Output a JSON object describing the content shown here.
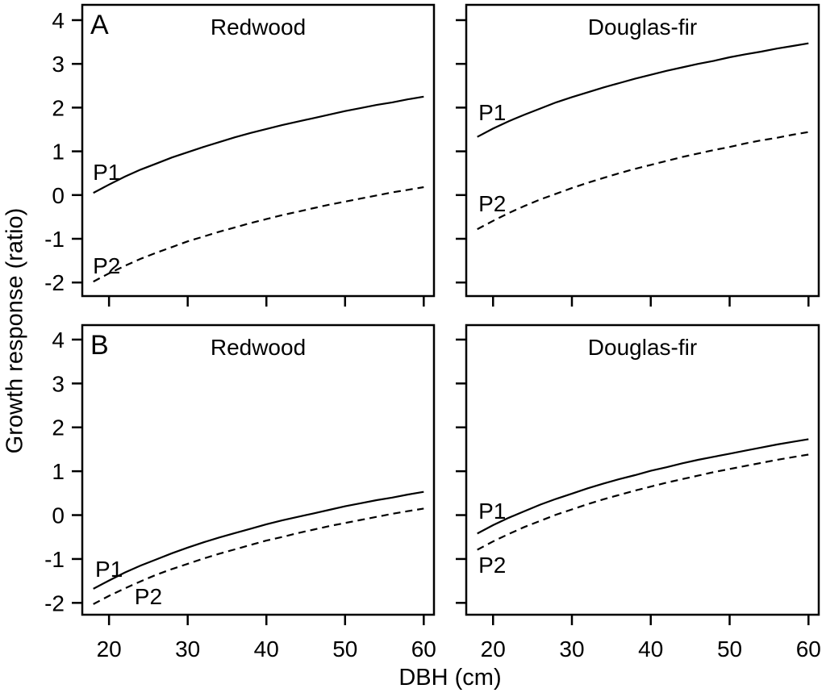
{
  "figure": {
    "xlabel": "DBH (cm)",
    "ylabel": "Growth response (ratio)",
    "background_color": "#ffffff",
    "line_color": "#000000"
  },
  "chart_data": [
    {
      "id": "panel-a-redwood",
      "type": "line",
      "panel_letter": "A",
      "title": "Redwood",
      "row": 0,
      "col": 0,
      "xlim": [
        16.6,
        61.3
      ],
      "ylim": [
        -2.31,
        4.35
      ],
      "xticks": [
        20,
        30,
        40,
        50,
        60
      ],
      "yticks": [
        4,
        3,
        2,
        1,
        0,
        -1,
        -2
      ],
      "show_x_tick_labels": false,
      "show_y_tick_labels": true,
      "grid": false,
      "x": [
        18,
        20,
        22,
        24,
        26,
        28,
        30,
        32,
        34,
        36,
        38,
        40,
        42,
        44,
        46,
        48,
        50,
        52,
        54,
        56,
        58,
        60
      ],
      "series": [
        {
          "name": "P1",
          "style": "solid",
          "values": [
            0.05,
            0.24,
            0.42,
            0.58,
            0.72,
            0.86,
            0.98,
            1.1,
            1.21,
            1.32,
            1.42,
            1.51,
            1.6,
            1.68,
            1.76,
            1.84,
            1.92,
            1.99,
            2.06,
            2.12,
            2.19,
            2.25
          ],
          "label_at": [
            19.7,
            0.51
          ]
        },
        {
          "name": "P2",
          "style": "dashed",
          "values": [
            -1.98,
            -1.79,
            -1.62,
            -1.46,
            -1.32,
            -1.19,
            -1.06,
            -0.95,
            -0.84,
            -0.74,
            -0.64,
            -0.55,
            -0.46,
            -0.38,
            -0.3,
            -0.22,
            -0.15,
            -0.08,
            -0.01,
            0.06,
            0.12,
            0.18
          ],
          "label_at": [
            19.7,
            -1.63
          ]
        }
      ]
    },
    {
      "id": "panel-a-douglas-fir",
      "type": "line",
      "panel_letter": "",
      "title": "Douglas-fir",
      "row": 0,
      "col": 1,
      "xlim": [
        16.6,
        61.3
      ],
      "ylim": [
        -2.31,
        4.35
      ],
      "xticks": [
        20,
        30,
        40,
        50,
        60
      ],
      "yticks": [
        4,
        3,
        2,
        1,
        0,
        -1,
        -2
      ],
      "show_x_tick_labels": false,
      "show_y_tick_labels": false,
      "grid": false,
      "x": [
        18,
        20,
        22,
        24,
        26,
        28,
        30,
        32,
        34,
        36,
        38,
        40,
        42,
        44,
        46,
        48,
        50,
        52,
        54,
        56,
        58,
        60
      ],
      "series": [
        {
          "name": "P1",
          "style": "solid",
          "values": [
            1.33,
            1.52,
            1.69,
            1.84,
            1.98,
            2.12,
            2.24,
            2.35,
            2.46,
            2.56,
            2.66,
            2.75,
            2.84,
            2.92,
            3.0,
            3.07,
            3.15,
            3.22,
            3.28,
            3.35,
            3.41,
            3.47
          ],
          "label_at": [
            19.9,
            1.88
          ]
        },
        {
          "name": "P2",
          "style": "dashed",
          "values": [
            -0.78,
            -0.59,
            -0.41,
            -0.25,
            -0.1,
            0.03,
            0.16,
            0.28,
            0.39,
            0.5,
            0.6,
            0.69,
            0.78,
            0.87,
            0.95,
            1.03,
            1.1,
            1.18,
            1.25,
            1.31,
            1.38,
            1.44
          ],
          "label_at": [
            19.9,
            -0.21
          ]
        }
      ]
    },
    {
      "id": "panel-b-redwood",
      "type": "line",
      "panel_letter": "B",
      "title": "Redwood",
      "row": 1,
      "col": 0,
      "xlim": [
        16.6,
        61.3
      ],
      "ylim": [
        -2.27,
        4.33
      ],
      "xticks": [
        20,
        30,
        40,
        50,
        60
      ],
      "yticks": [
        4,
        3,
        2,
        1,
        0,
        -1,
        -2
      ],
      "show_x_tick_labels": true,
      "show_y_tick_labels": true,
      "grid": false,
      "x": [
        18,
        20,
        22,
        24,
        26,
        28,
        30,
        32,
        34,
        36,
        38,
        40,
        42,
        44,
        46,
        48,
        50,
        52,
        54,
        56,
        58,
        60
      ],
      "series": [
        {
          "name": "P1",
          "style": "solid",
          "values": [
            -1.68,
            -1.49,
            -1.31,
            -1.15,
            -1.01,
            -0.87,
            -0.74,
            -0.62,
            -0.51,
            -0.41,
            -0.31,
            -0.21,
            -0.12,
            -0.04,
            0.04,
            0.12,
            0.2,
            0.27,
            0.34,
            0.4,
            0.47,
            0.53
          ],
          "label_at": [
            20.0,
            -1.24
          ]
        },
        {
          "name": "P2",
          "style": "dashed",
          "values": [
            -2.03,
            -1.84,
            -1.67,
            -1.51,
            -1.36,
            -1.23,
            -1.11,
            -0.99,
            -0.88,
            -0.78,
            -0.68,
            -0.58,
            -0.5,
            -0.41,
            -0.33,
            -0.25,
            -0.18,
            -0.11,
            -0.04,
            0.03,
            0.09,
            0.15
          ],
          "label_at": [
            25.0,
            -1.86
          ]
        }
      ]
    },
    {
      "id": "panel-b-douglas-fir",
      "type": "line",
      "panel_letter": "",
      "title": "Douglas-fir",
      "row": 1,
      "col": 1,
      "xlim": [
        16.6,
        61.3
      ],
      "ylim": [
        -2.27,
        4.33
      ],
      "xticks": [
        20,
        30,
        40,
        50,
        60
      ],
      "yticks": [
        4,
        3,
        2,
        1,
        0,
        -1,
        -2
      ],
      "show_x_tick_labels": true,
      "show_y_tick_labels": false,
      "grid": false,
      "x": [
        18,
        20,
        22,
        24,
        26,
        28,
        30,
        32,
        34,
        36,
        38,
        40,
        42,
        44,
        46,
        48,
        50,
        52,
        54,
        56,
        58,
        60
      ],
      "series": [
        {
          "name": "P1",
          "style": "solid",
          "values": [
            -0.42,
            -0.23,
            -0.06,
            0.09,
            0.24,
            0.37,
            0.49,
            0.61,
            0.72,
            0.82,
            0.91,
            1.01,
            1.09,
            1.18,
            1.26,
            1.33,
            1.4,
            1.47,
            1.54,
            1.61,
            1.67,
            1.73
          ],
          "label_at": [
            19.9,
            0.09
          ]
        },
        {
          "name": "P2",
          "style": "dashed",
          "values": [
            -0.79,
            -0.6,
            -0.43,
            -0.27,
            -0.13,
            0.01,
            0.13,
            0.25,
            0.36,
            0.46,
            0.56,
            0.65,
            0.74,
            0.82,
            0.9,
            0.98,
            1.05,
            1.12,
            1.19,
            1.26,
            1.32,
            1.38
          ],
          "label_at": [
            19.9,
            -1.15
          ]
        }
      ]
    }
  ]
}
